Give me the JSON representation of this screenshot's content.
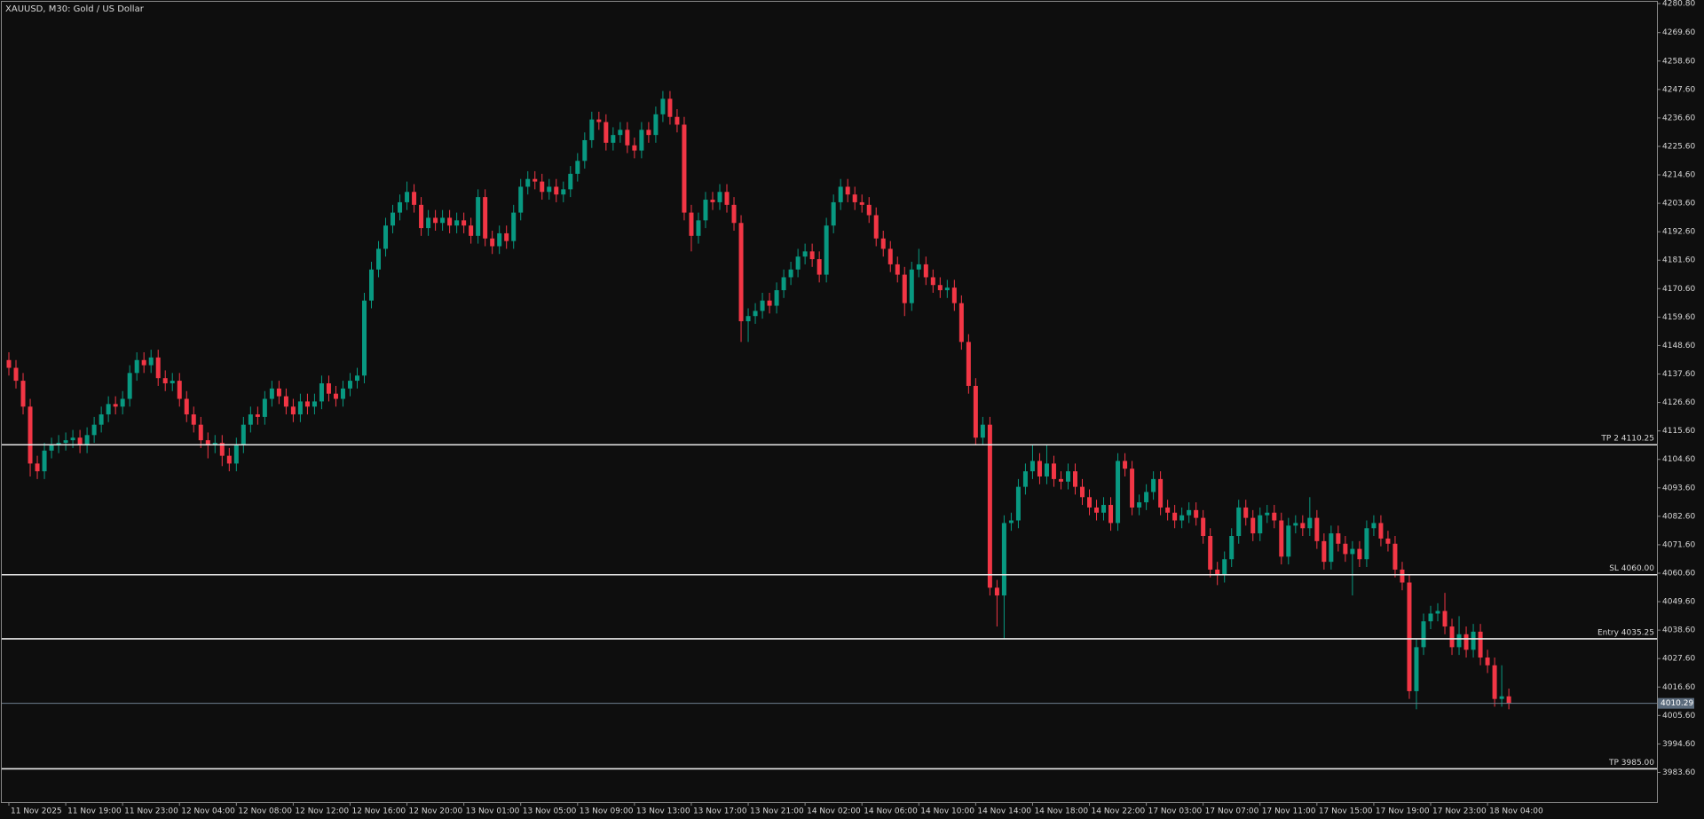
{
  "chart_data": {
    "type": "candlestick",
    "title": "XAUUSD, M30:  Gold / US Dollar",
    "up_color": "#089981",
    "down_color": "#f23645",
    "ylim": [
      3972.1,
      4281.5
    ],
    "yticks": [
      {
        "value": 4280.8,
        "label": "4280.80"
      },
      {
        "value": 4269.6,
        "label": "4269.60"
      },
      {
        "value": 4258.6,
        "label": "4258.60"
      },
      {
        "value": 4247.6,
        "label": "4247.60"
      },
      {
        "value": 4236.6,
        "label": "4236.60"
      },
      {
        "value": 4225.6,
        "label": "4225.60"
      },
      {
        "value": 4214.6,
        "label": "4214.60"
      },
      {
        "value": 4203.6,
        "label": "4203.60"
      },
      {
        "value": 4192.6,
        "label": "4192.60"
      },
      {
        "value": 4181.6,
        "label": "4181.60"
      },
      {
        "value": 4170.6,
        "label": "4170.60"
      },
      {
        "value": 4159.6,
        "label": "4159.60"
      },
      {
        "value": 4148.6,
        "label": "4148.60"
      },
      {
        "value": 4137.6,
        "label": "4137.60"
      },
      {
        "value": 4126.6,
        "label": "4126.60"
      },
      {
        "value": 4115.6,
        "label": "4115.60"
      },
      {
        "value": 4104.6,
        "label": "4104.60"
      },
      {
        "value": 4093.6,
        "label": "4093.60"
      },
      {
        "value": 4082.6,
        "label": "4082.60"
      },
      {
        "value": 4071.6,
        "label": "4071.60"
      },
      {
        "value": 4060.6,
        "label": "4060.60"
      },
      {
        "value": 4049.6,
        "label": "4049.60"
      },
      {
        "value": 4038.6,
        "label": "4038.60"
      },
      {
        "value": 4027.6,
        "label": "4027.60"
      },
      {
        "value": 4016.6,
        "label": "4016.60"
      },
      {
        "value": 4005.6,
        "label": "4005.60"
      },
      {
        "value": 3994.6,
        "label": "3994.60"
      },
      {
        "value": 3983.6,
        "label": "3983.60"
      }
    ],
    "levels": [
      {
        "label": "TP 2 4110.25",
        "value": 4110.25
      },
      {
        "label": "SL 4060.00",
        "value": 4060.0
      },
      {
        "label": "Entry 4035.25",
        "value": 4035.25
      },
      {
        "label": "TP 3985.00",
        "value": 3985.0
      }
    ],
    "last_price": 4010.29,
    "categories": [
      "11 Nov 2025",
      null,
      null,
      null,
      null,
      null,
      null,
      null,
      "11 Nov 19:00",
      null,
      null,
      null,
      null,
      null,
      null,
      null,
      "11 Nov 23:00",
      null,
      null,
      null,
      null,
      null,
      null,
      null,
      "12 Nov 04:00",
      null,
      null,
      null,
      null,
      null,
      null,
      null,
      "12 Nov 08:00",
      null,
      null,
      null,
      null,
      null,
      null,
      null,
      "12 Nov 12:00",
      null,
      null,
      null,
      null,
      null,
      null,
      null,
      "12 Nov 16:00",
      null,
      null,
      null,
      null,
      null,
      null,
      null,
      "12 Nov 20:00",
      null,
      null,
      null,
      null,
      null,
      null,
      null,
      "13 Nov 01:00",
      null,
      null,
      null,
      null,
      null,
      null,
      null,
      "13 Nov 05:00",
      null,
      null,
      null,
      null,
      null,
      null,
      null,
      "13 Nov 09:00",
      null,
      null,
      null,
      null,
      null,
      null,
      null,
      "13 Nov 13:00",
      null,
      null,
      null,
      null,
      null,
      null,
      null,
      "13 Nov 17:00",
      null,
      null,
      null,
      null,
      null,
      null,
      null,
      "13 Nov 21:00",
      null,
      null,
      null,
      null,
      null,
      null,
      null,
      "14 Nov 02:00",
      null,
      null,
      null,
      null,
      null,
      null,
      null,
      "14 Nov 06:00",
      null,
      null,
      null,
      null,
      null,
      null,
      null,
      "14 Nov 10:00",
      null,
      null,
      null,
      null,
      null,
      null,
      null,
      "14 Nov 14:00",
      null,
      null,
      null,
      null,
      null,
      null,
      null,
      "14 Nov 18:00",
      null,
      null,
      null,
      null,
      null,
      null,
      null,
      "14 Nov 22:00",
      null,
      null,
      null,
      null,
      null,
      null,
      null,
      "17 Nov 03:00",
      null,
      null,
      null,
      null,
      null,
      null,
      null,
      "17 Nov 07:00",
      null,
      null,
      null,
      null,
      null,
      null,
      null,
      "17 Nov 11:00",
      null,
      null,
      null,
      null,
      null,
      null,
      null,
      "17 Nov 15:00",
      null,
      null,
      null,
      null,
      null,
      null,
      null,
      "17 Nov 19:00",
      null,
      null,
      null,
      null,
      null,
      null,
      null,
      "17 Nov 23:00",
      null,
      null,
      null,
      null,
      null,
      null,
      null,
      "18 Nov 04:00",
      null,
      null,
      null
    ],
    "open": [
      4143,
      4140,
      4135,
      4125,
      4103,
      4100,
      4108,
      4110,
      4111,
      4112,
      4113,
      4110,
      4114,
      4118,
      4122,
      4126,
      4125,
      4128,
      4138,
      4143,
      4141,
      4144,
      4136,
      4134,
      4135,
      4128,
      4122,
      4118,
      4112,
      4110,
      4111,
      4106,
      4103,
      4110,
      4118,
      4122,
      4121,
      4128,
      4132,
      4129,
      4125,
      4122,
      4127,
      4125,
      4127,
      4134,
      4130,
      4128,
      4132,
      4135,
      4137,
      4166,
      4178,
      4186,
      4195,
      4200,
      4204,
      4208,
      4203,
      4194,
      4198,
      4196,
      4198,
      4195,
      4197,
      4195,
      4191,
      4206,
      4190,
      4187,
      4192,
      4189,
      4200,
      4210,
      4213,
      4212,
      4208,
      4210,
      4207,
      4209,
      4215,
      4220,
      4228,
      4236,
      4235,
      4227,
      4230,
      4232,
      4226,
      4224,
      4232,
      4230,
      4238,
      4244,
      4237,
      4234,
      4200,
      4191,
      4197,
      4205,
      4204,
      4208,
      4203,
      4196,
      4158,
      4160,
      4162,
      4166,
      4164,
      4170,
      4175,
      4178,
      4183,
      4185,
      4182,
      4176,
      4195,
      4204,
      4210,
      4207,
      4204,
      4203,
      4199,
      4190,
      4186,
      4180,
      4176,
      4165,
      4178,
      4180,
      4175,
      4172,
      4170,
      4171,
      4165,
      4150,
      4133,
      4113,
      4118,
      4055,
      4052,
      4080,
      4081,
      4094,
      4100,
      4104,
      4098,
      4103,
      4097,
      4096,
      4100,
      4094,
      4090,
      4086,
      4084,
      4087,
      4080,
      4104,
      4101,
      4086,
      4088,
      4092,
      4097,
      4086,
      4084,
      4081,
      4083,
      4085,
      4082,
      4075,
      4062,
      4060,
      4066,
      4075,
      4086,
      4082,
      4076,
      4083,
      4084,
      4081,
      4067,
      4079,
      4080,
      4078,
      4082,
      4073,
      4065,
      4076,
      4072,
      4068,
      4070,
      4066,
      4078,
      4080,
      4074,
      4072,
      4062,
      4057,
      4015,
      4032,
      4042,
      4045,
      4046,
      4040,
      4032,
      4037,
      4031,
      4038,
      4028,
      4025,
      4012,
      4013
    ],
    "high": [
      4146,
      4143,
      4138,
      4128,
      4106,
      4111,
      4113,
      4114,
      4115,
      4116,
      4116,
      4117,
      4121,
      4125,
      4129,
      4129,
      4131,
      4141,
      4146,
      4146,
      4147,
      4147,
      4139,
      4138,
      4138,
      4131,
      4125,
      4121,
      4115,
      4114,
      4114,
      4109,
      4113,
      4121,
      4125,
      4125,
      4131,
      4135,
      4135,
      4132,
      4128,
      4130,
      4130,
      4130,
      4137,
      4137,
      4133,
      4135,
      4138,
      4140,
      4169,
      4181,
      4189,
      4198,
      4203,
      4207,
      4212,
      4211,
      4206,
      4201,
      4201,
      4201,
      4201,
      4200,
      4200,
      4198,
      4209,
      4209,
      4193,
      4195,
      4195,
      4203,
      4213,
      4216,
      4216,
      4215,
      4213,
      4213,
      4212,
      4218,
      4223,
      4231,
      4239,
      4239,
      4238,
      4233,
      4235,
      4235,
      4229,
      4235,
      4235,
      4241,
      4247,
      4247,
      4240,
      4237,
      4203,
      4200,
      4208,
      4208,
      4211,
      4211,
      4206,
      4199,
      4163,
      4165,
      4169,
      4169,
      4173,
      4178,
      4181,
      4186,
      4188,
      4188,
      4185,
      4198,
      4207,
      4213,
      4213,
      4210,
      4207,
      4206,
      4202,
      4193,
      4189,
      4183,
      4179,
      4181,
      4186,
      4183,
      4178,
      4175,
      4174,
      4174,
      4168,
      4153,
      4136,
      4121,
      4121,
      4058,
      4083,
      4084,
      4097,
      4103,
      4110,
      4107,
      4110,
      4106,
      4100,
      4103,
      4103,
      4097,
      4093,
      4089,
      4090,
      4090,
      4107,
      4107,
      4104,
      4091,
      4095,
      4100,
      4100,
      4089,
      4087,
      4086,
      4088,
      4088,
      4085,
      4078,
      4065,
      4069,
      4078,
      4089,
      4089,
      4085,
      4086,
      4087,
      4087,
      4084,
      4082,
      4083,
      4083,
      4090,
      4085,
      4076,
      4079,
      4079,
      4075,
      4073,
      4073,
      4081,
      4083,
      4083,
      4077,
      4075,
      4065,
      4060,
      4035,
      4045,
      4048,
      4049,
      4053,
      4043,
      4044,
      4040,
      4041,
      4041,
      4031,
      4028,
      4025,
      4016
    ],
    "low": [
      4137,
      4132,
      4122,
      4098,
      4097,
      4097,
      4105,
      4107,
      4108,
      4109,
      4107,
      4107,
      4111,
      4115,
      4119,
      4122,
      4122,
      4125,
      4135,
      4138,
      4138,
      4133,
      4131,
      4131,
      4125,
      4119,
      4115,
      4109,
      4105,
      4107,
      4102,
      4100,
      4100,
      4107,
      4115,
      4118,
      4118,
      4125,
      4126,
      4122,
      4119,
      4119,
      4122,
      4122,
      4124,
      4127,
      4125,
      4125,
      4129,
      4132,
      4134,
      4163,
      4175,
      4183,
      4192,
      4197,
      4201,
      4200,
      4191,
      4191,
      4193,
      4193,
      4192,
      4192,
      4192,
      4188,
      4188,
      4187,
      4184,
      4184,
      4186,
      4186,
      4197,
      4207,
      4209,
      4205,
      4205,
      4204,
      4204,
      4206,
      4212,
      4217,
      4225,
      4232,
      4224,
      4224,
      4227,
      4223,
      4221,
      4221,
      4227,
      4227,
      4235,
      4234,
      4231,
      4197,
      4185,
      4188,
      4194,
      4201,
      4201,
      4200,
      4193,
      4150,
      4150,
      4157,
      4159,
      4161,
      4161,
      4167,
      4172,
      4175,
      4180,
      4179,
      4173,
      4173,
      4192,
      4201,
      4204,
      4201,
      4200,
      4196,
      4187,
      4183,
      4177,
      4173,
      4160,
      4162,
      4175,
      4172,
      4169,
      4167,
      4167,
      4162,
      4147,
      4130,
      4110,
      4110,
      4052,
      4040,
      4035,
      4077,
      4078,
      4091,
      4097,
      4095,
      4095,
      4094,
      4093,
      4093,
      4091,
      4087,
      4083,
      4081,
      4081,
      4077,
      4077,
      4098,
      4083,
      4083,
      4085,
      4089,
      4083,
      4081,
      4078,
      4078,
      4080,
      4079,
      4072,
      4059,
      4056,
      4057,
      4063,
      4072,
      4079,
      4073,
      4073,
      4080,
      4078,
      4064,
      4064,
      4076,
      4075,
      4075,
      4070,
      4062,
      4062,
      4069,
      4065,
      4052,
      4063,
      4063,
      4075,
      4071,
      4069,
      4059,
      4054,
      4012,
      4008,
      4029,
      4039,
      4042,
      4037,
      4029,
      4029,
      4028,
      4028,
      4025,
      4022,
      4009,
      4009,
      4008
    ],
    "close": [
      4140,
      4135,
      4125,
      4103,
      4100,
      4108,
      4110,
      4111,
      4112,
      4113,
      4110,
      4114,
      4118,
      4122,
      4126,
      4125,
      4128,
      4138,
      4143,
      4141,
      4144,
      4136,
      4134,
      4135,
      4128,
      4122,
      4118,
      4112,
      4110,
      4111,
      4106,
      4103,
      4110,
      4118,
      4122,
      4121,
      4128,
      4132,
      4129,
      4125,
      4122,
      4127,
      4125,
      4127,
      4134,
      4130,
      4128,
      4132,
      4135,
      4137,
      4166,
      4178,
      4186,
      4195,
      4200,
      4204,
      4208,
      4203,
      4194,
      4198,
      4196,
      4198,
      4195,
      4197,
      4195,
      4191,
      4206,
      4190,
      4187,
      4192,
      4189,
      4200,
      4210,
      4213,
      4212,
      4208,
      4210,
      4207,
      4209,
      4215,
      4220,
      4228,
      4236,
      4235,
      4227,
      4230,
      4232,
      4226,
      4224,
      4232,
      4230,
      4238,
      4244,
      4237,
      4234,
      4200,
      4191,
      4197,
      4205,
      4204,
      4208,
      4203,
      4196,
      4158,
      4160,
      4162,
      4166,
      4164,
      4170,
      4175,
      4178,
      4183,
      4185,
      4182,
      4176,
      4195,
      4204,
      4210,
      4207,
      4204,
      4203,
      4199,
      4190,
      4186,
      4180,
      4176,
      4165,
      4178,
      4180,
      4175,
      4172,
      4170,
      4171,
      4165,
      4150,
      4133,
      4113,
      4118,
      4055,
      4052,
      4080,
      4081,
      4094,
      4100,
      4104,
      4098,
      4103,
      4097,
      4096,
      4100,
      4094,
      4090,
      4086,
      4084,
      4087,
      4080,
      4104,
      4101,
      4086,
      4088,
      4092,
      4097,
      4086,
      4084,
      4081,
      4083,
      4085,
      4082,
      4075,
      4062,
      4060,
      4066,
      4075,
      4086,
      4082,
      4076,
      4083,
      4084,
      4081,
      4067,
      4079,
      4080,
      4078,
      4082,
      4073,
      4065,
      4076,
      4072,
      4068,
      4070,
      4066,
      4078,
      4080,
      4074,
      4072,
      4062,
      4057,
      4015,
      4032,
      4042,
      4045,
      4046,
      4040,
      4032,
      4037,
      4031,
      4038,
      4028,
      4025,
      4012,
      4013,
      4010.29
    ]
  }
}
